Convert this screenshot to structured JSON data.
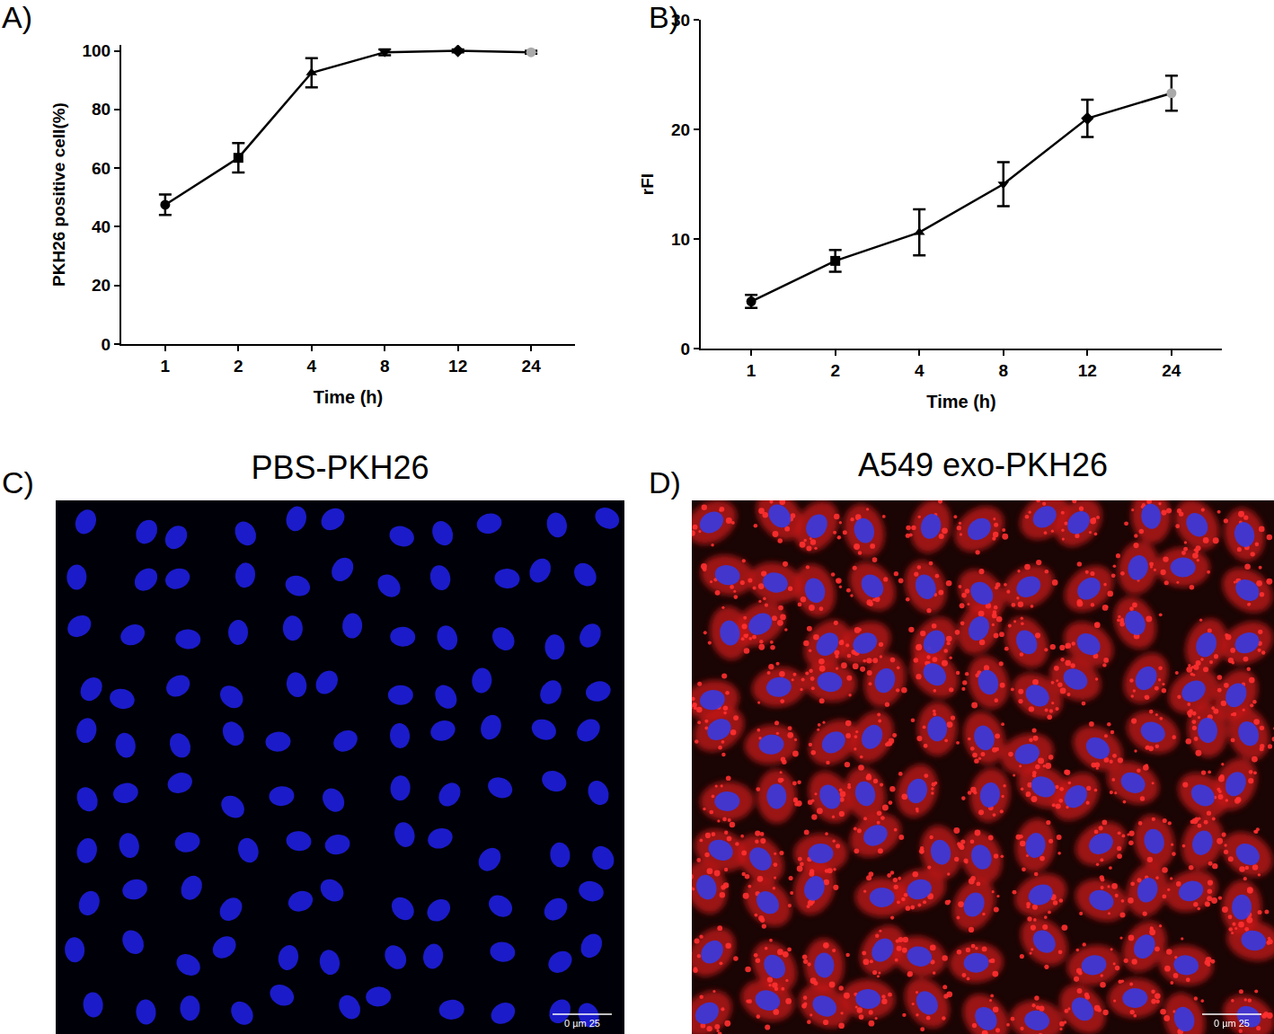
{
  "chart_data": [
    {
      "type": "line",
      "annotations": [
        "A)"
      ],
      "x_label": "Time (h)",
      "y_label": "PKH26 positive cell(%)",
      "categories": [
        "1",
        "2",
        "4",
        "8",
        "12",
        "24"
      ],
      "series": [
        {
          "values": [
            47.5,
            63.5,
            92.5,
            99.5,
            100,
            99.5
          ],
          "errors": [
            3.5,
            5,
            5,
            1,
            0.5,
            0.5
          ],
          "color": "#000000",
          "colors": [
            "#000000",
            "#000000",
            "#000000",
            "#000000",
            "#000000",
            "#aaaaaa"
          ]
        }
      ],
      "ylim": [
        0,
        102
      ],
      "yticks": [
        0,
        20,
        40,
        60,
        80,
        100
      ],
      "grid": false
    },
    {
      "type": "line",
      "annotations": [
        "B)"
      ],
      "x_label": "Time (h)",
      "y_label": "rFI",
      "categories": [
        "1",
        "2",
        "4",
        "8",
        "12",
        "24"
      ],
      "series": [
        {
          "values": [
            4.3,
            8,
            10.6,
            15,
            21,
            23.3
          ],
          "errors": [
            0.6,
            1,
            2.1,
            2,
            1.7,
            1.6
          ],
          "color": "#000000",
          "colors": [
            "#000000",
            "#000000",
            "#000000",
            "#000000",
            "#000000",
            "#aaaaaa"
          ]
        }
      ],
      "ylim": [
        0,
        30
      ],
      "yticks": [
        0,
        10,
        20,
        30
      ],
      "grid": false
    }
  ],
  "images": [
    {
      "label": "C)",
      "title": "PBS-PKH26",
      "scale_bar": "0  µm  25"
    },
    {
      "label": "D)",
      "title": "A549 exo-PKH26",
      "scale_bar": "0  µm  25"
    }
  ]
}
